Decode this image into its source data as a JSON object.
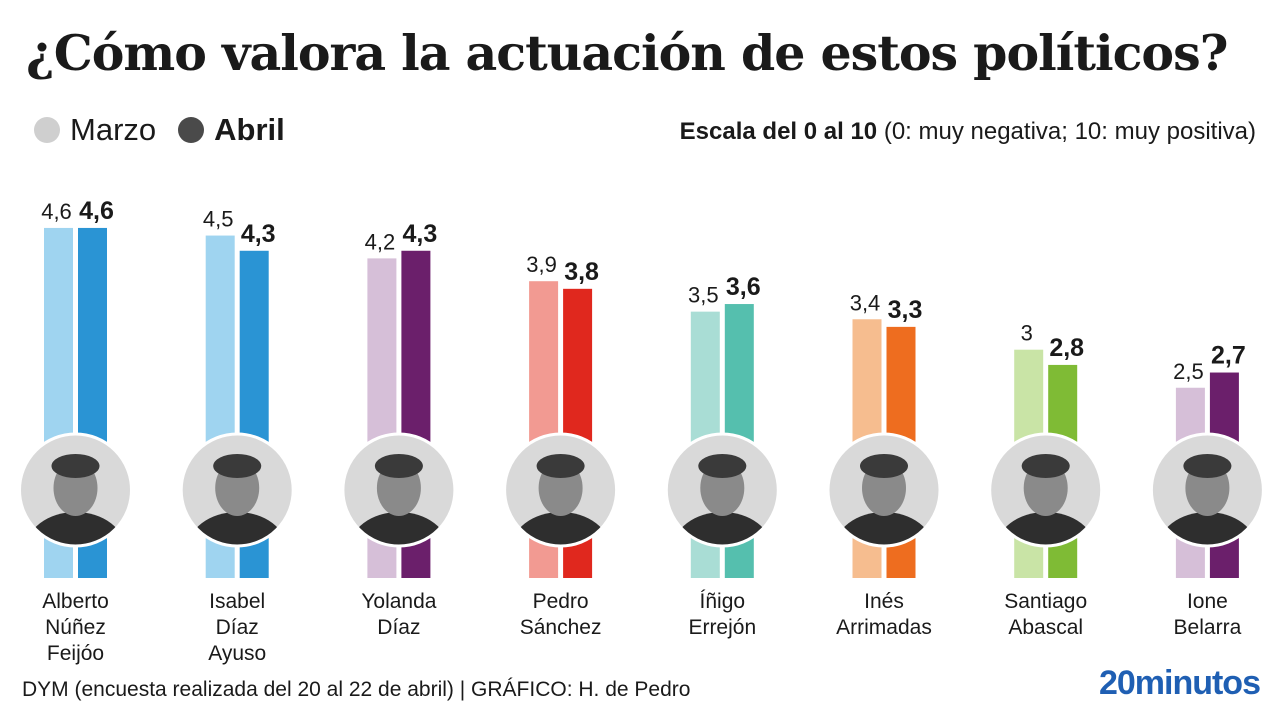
{
  "header": {
    "title": "¿Cómo valora la actuación de estos políticos?",
    "legend_marzo": "Marzo",
    "legend_abril": "Abril",
    "scale_bold": "Escala del 0 al 10",
    "scale_rest": " (0: muy negativa; 10: muy positiva)"
  },
  "footer": {
    "source": "DYM (encuesta realizada del 20 al 22 de abril)   |  GRÁFICO: H. de Pedro",
    "brand": "20minutos"
  },
  "chart_data": {
    "type": "bar",
    "title": "¿Cómo valora la actuación de estos políticos?",
    "xlabel": "",
    "ylabel": "",
    "ylim": [
      0,
      10
    ],
    "grid": false,
    "legend_position": "top-left",
    "categories": [
      [
        "Alberto",
        "Núñez",
        "Feijóo"
      ],
      [
        "Isabel",
        "Díaz",
        "Ayuso"
      ],
      [
        "Yolanda",
        "Díaz"
      ],
      [
        "Pedro",
        "Sánchez"
      ],
      [
        "Íñigo",
        "Errejón"
      ],
      [
        "Inés",
        "Arrimadas"
      ],
      [
        "Santiago",
        "Abascal"
      ],
      [
        "Ione",
        "Belarra"
      ]
    ],
    "series": [
      {
        "name": "Marzo",
        "values": [
          4.6,
          4.5,
          4.2,
          3.9,
          3.5,
          3.4,
          3,
          2.5
        ],
        "labels": [
          "4,6",
          "4,5",
          "4,2",
          "3,9",
          "3,5",
          "3,4",
          "3",
          "2,5"
        ]
      },
      {
        "name": "Abril",
        "values": [
          4.6,
          4.3,
          4.3,
          3.8,
          3.6,
          3.3,
          2.8,
          2.7
        ],
        "labels": [
          "4,6",
          "4,3",
          "4,3",
          "3,8",
          "3,6",
          "3,3",
          "2,8",
          "2,7"
        ]
      }
    ],
    "colors": {
      "marzo": [
        "#9fd4f0",
        "#9fd4f0",
        "#d6bfd8",
        "#f29a92",
        "#a9ddd5",
        "#f6bd8f",
        "#c9e4a6",
        "#d6bfd8"
      ],
      "abril": [
        "#2a94d4",
        "#2a94d4",
        "#6b1f6b",
        "#e0281e",
        "#55bfae",
        "#ee6d1f",
        "#7fbb35",
        "#6b1f6b"
      ]
    },
    "photo_icons": [
      "portrait-icon",
      "portrait-icon",
      "portrait-icon",
      "portrait-icon",
      "portrait-icon",
      "portrait-icon",
      "portrait-icon",
      "portrait-icon"
    ]
  }
}
